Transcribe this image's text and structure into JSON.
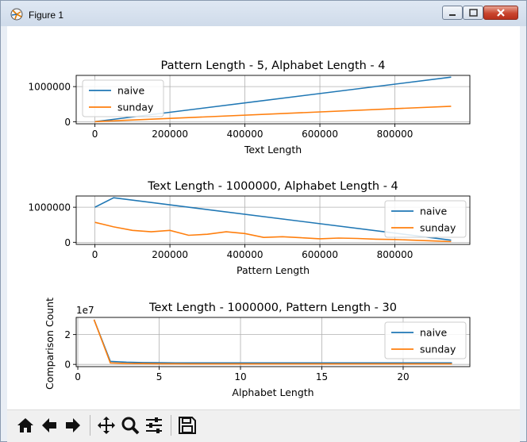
{
  "window": {
    "title": "Figure 1"
  },
  "toolbar": {
    "buttons": [
      "home-icon",
      "back-arrow-icon",
      "forward-arrow-icon",
      "pan-move-icon",
      "zoom-magnifier-icon",
      "configure-subplots-icon",
      "save-disk-icon"
    ]
  },
  "colors": {
    "naive": "#1f77b4",
    "sunday": "#ff7f0e",
    "grid": "#b0b0b0"
  },
  "chart_data": [
    {
      "type": "line",
      "title": "Pattern Length - 5, Alphabet Length - 4",
      "xlabel": "Text Length",
      "ylabel": "",
      "xlim": [
        -50000,
        1000000
      ],
      "ylim": [
        -60000,
        1320000
      ],
      "xticks": [
        0,
        200000,
        400000,
        600000,
        800000
      ],
      "xtick_labels": [
        "0",
        "200000",
        "400000",
        "600000",
        "800000"
      ],
      "yticks": [
        0,
        1000000
      ],
      "ytick_labels": [
        "0",
        "1000000"
      ],
      "y_offset_label": "",
      "grid": true,
      "legend_position": "upper left",
      "series": [
        {
          "name": "naive",
          "x": [
            0,
            950000
          ],
          "y": [
            0,
            1270000
          ]
        },
        {
          "name": "sunday",
          "x": [
            0,
            950000
          ],
          "y": [
            0,
            440000
          ]
        }
      ]
    },
    {
      "type": "line",
      "title": "Text Length - 1000000, Alphabet Length - 4",
      "xlabel": "Pattern Length",
      "ylabel": "",
      "xlim": [
        -50000,
        1000000
      ],
      "ylim": [
        -60000,
        1320000
      ],
      "xticks": [
        0,
        200000,
        400000,
        600000,
        800000
      ],
      "xtick_labels": [
        "0",
        "200000",
        "400000",
        "600000",
        "800000"
      ],
      "yticks": [
        0,
        1000000
      ],
      "ytick_labels": [
        "0",
        "1000000"
      ],
      "y_offset_label": "",
      "grid": true,
      "legend_position": "upper right",
      "series": [
        {
          "name": "naive",
          "x": [
            0,
            50000,
            950000
          ],
          "y": [
            1000000,
            1270000,
            60000
          ]
        },
        {
          "name": "sunday",
          "x": [
            0,
            50000,
            100000,
            150000,
            200000,
            250000,
            300000,
            350000,
            400000,
            450000,
            500000,
            550000,
            600000,
            650000,
            700000,
            750000,
            800000,
            850000,
            900000,
            950000
          ],
          "y": [
            570000,
            440000,
            340000,
            300000,
            340000,
            200000,
            230000,
            300000,
            250000,
            140000,
            160000,
            130000,
            100000,
            120000,
            110000,
            90000,
            80000,
            60000,
            40000,
            20000
          ]
        }
      ]
    },
    {
      "type": "line",
      "title": "Text Length - 1000000, Pattern Length - 30",
      "xlabel": "Alphabet Length",
      "ylabel": "Comparison Count",
      "xlim": [
        -0.1,
        24.1
      ],
      "ylim": [
        -0.15,
        3.15
      ],
      "xticks": [
        0,
        5,
        10,
        15,
        20
      ],
      "xtick_labels": [
        "0",
        "5",
        "10",
        "15",
        "20"
      ],
      "yticks": [
        0,
        2
      ],
      "ytick_labels": [
        "0",
        "2"
      ],
      "y_offset_label": "1e7",
      "grid": true,
      "legend_position": "upper right",
      "series": [
        {
          "name": "naive",
          "x": [
            1,
            2,
            3,
            4,
            5,
            6,
            7,
            8,
            9,
            10,
            11,
            12,
            13,
            14,
            15,
            16,
            17,
            18,
            19,
            20,
            21,
            22,
            23
          ],
          "y": [
            3.0,
            0.2,
            0.15,
            0.12,
            0.11,
            0.1,
            0.1,
            0.1,
            0.1,
            0.1,
            0.1,
            0.1,
            0.1,
            0.1,
            0.1,
            0.1,
            0.1,
            0.1,
            0.1,
            0.1,
            0.1,
            0.1,
            0.1
          ]
        },
        {
          "name": "sunday",
          "x": [
            1,
            2,
            3,
            4,
            5,
            6,
            7,
            8,
            9,
            10,
            11,
            12,
            13,
            14,
            15,
            16,
            17,
            18,
            19,
            20,
            21,
            22,
            23
          ],
          "y": [
            3.0,
            0.1,
            0.06,
            0.05,
            0.04,
            0.04,
            0.03,
            0.03,
            0.03,
            0.03,
            0.03,
            0.03,
            0.03,
            0.03,
            0.03,
            0.03,
            0.03,
            0.03,
            0.03,
            0.03,
            0.03,
            0.03,
            0.03
          ]
        }
      ]
    }
  ]
}
